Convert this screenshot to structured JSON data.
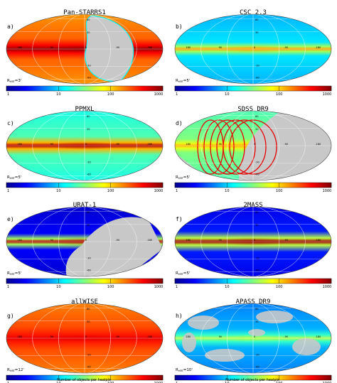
{
  "figure": {
    "colorbar_xlabel": "Number of objects per healpix",
    "colorscale": [
      "#00008f",
      "#0000ff",
      "#0080ff",
      "#00ffff",
      "#80ff80",
      "#ffff00",
      "#ff8000",
      "#ff0000",
      "#800000"
    ],
    "masked_color": "#c8c8c8"
  },
  "chart_data": [
    {
      "type": "heatmap",
      "projection": "mollweide",
      "title": "Pan-STARRS1",
      "panel_label": "a)",
      "resolution_label": "R",
      "resolution_sub": "HRT",
      "resolution_value": "=3'",
      "colorbar_ticks": [
        "1",
        "10",
        "100",
        "1000"
      ],
      "grid_labels": [
        "180",
        "90",
        "0",
        "-90",
        "-180",
        "60",
        "30",
        "-30",
        "-60"
      ],
      "masked_region": "southern sky (Dec < -30 deg)",
      "level": {
        "base": 0.78,
        "galactic_plane": 0.98,
        "plane_width_deg": 9
      }
    },
    {
      "type": "heatmap",
      "projection": "mollweide",
      "title": "CSC 2.3",
      "panel_label": "b)",
      "resolution_label": "R",
      "resolution_sub": "HRT",
      "resolution_value": "=5'",
      "colorbar_ticks": [
        "1",
        "10",
        "100",
        "1000"
      ],
      "grid_labels": [
        "180",
        "90",
        "0",
        "-90",
        "-180",
        "60",
        "30",
        "-30",
        "-60"
      ],
      "masked_region": "none",
      "level": {
        "base": 0.35,
        "galactic_plane": 0.72,
        "plane_width_deg": 6
      }
    },
    {
      "type": "heatmap",
      "projection": "mollweide",
      "title": "PPMXL",
      "panel_label": "c)",
      "resolution_label": "R",
      "resolution_sub": "HRT",
      "resolution_value": "=5'",
      "colorbar_ticks": [
        "1",
        "10",
        "100",
        "1000"
      ],
      "grid_labels": [
        "180",
        "90",
        "0",
        "-90",
        "-180",
        "60",
        "30",
        "-30",
        "-60"
      ],
      "masked_region": "none",
      "level": {
        "base": 0.45,
        "galactic_plane": 0.95,
        "plane_width_deg": 8
      }
    },
    {
      "type": "heatmap",
      "projection": "mollweide",
      "title": "SDSS DR9",
      "panel_label": "d)",
      "resolution_label": "R",
      "resolution_sub": "HRT",
      "resolution_value": "=5'",
      "colorbar_ticks": [
        "1",
        "10",
        "100",
        "1000"
      ],
      "grid_labels": [
        "180",
        "90",
        "0",
        "-90",
        "-180",
        "60",
        "30",
        "-30",
        "-60"
      ],
      "masked_region": "most of sky outside SDSS footprint",
      "level": {
        "base": 0.5,
        "galactic_plane": 0.7,
        "plane_width_deg": 6
      }
    },
    {
      "type": "heatmap",
      "projection": "mollweide",
      "title": "URAT-1",
      "panel_label": "e)",
      "resolution_label": "R",
      "resolution_sub": "HRT",
      "resolution_value": "=5'",
      "colorbar_ticks": [
        "1",
        "10",
        "100",
        "1000"
      ],
      "grid_labels": [
        "180",
        "90",
        "0",
        "-90",
        "-180",
        "60",
        "30",
        "-30",
        "-60"
      ],
      "masked_region": "southern sky (Dec < -15 deg)",
      "level": {
        "base": 0.12,
        "galactic_plane": 0.95,
        "plane_width_deg": 7
      }
    },
    {
      "type": "heatmap",
      "projection": "mollweide",
      "title": "2MASS",
      "panel_label": "f)",
      "resolution_label": "R",
      "resolution_sub": "HRT",
      "resolution_value": "=5'",
      "colorbar_ticks": [
        "1",
        "10",
        "100",
        "1000"
      ],
      "grid_labels": [
        "180",
        "90",
        "0",
        "-90",
        "-180",
        "60",
        "30",
        "-30",
        "-60"
      ],
      "masked_region": "none",
      "level": {
        "base": 0.15,
        "galactic_plane": 0.97,
        "plane_width_deg": 9
      }
    },
    {
      "type": "heatmap",
      "projection": "mollweide",
      "title": "allWISE",
      "panel_label": "g)",
      "resolution_label": "R",
      "resolution_sub": "HRT",
      "resolution_value": "=12'",
      "colorbar_ticks": [
        "1",
        "10",
        "100",
        "1000"
      ],
      "grid_labels": [
        "180",
        "90",
        "0",
        "-90",
        "-180",
        "60",
        "30",
        "-30",
        "-60"
      ],
      "masked_region": "none",
      "level": {
        "base": 0.8,
        "galactic_plane": 0.9,
        "plane_width_deg": 10
      }
    },
    {
      "type": "heatmap",
      "projection": "mollweide",
      "title": "APASS DR9",
      "panel_label": "h)",
      "resolution_label": "R",
      "resolution_sub": "HRT",
      "resolution_value": "=10'",
      "colorbar_ticks": [
        "1",
        "10",
        "100",
        "1000"
      ],
      "grid_labels": [
        "180",
        "90",
        "0",
        "-90",
        "-180",
        "60",
        "30",
        "-30",
        "-60"
      ],
      "masked_region": "scattered patches",
      "level": {
        "base": 0.3,
        "galactic_plane": 0.55,
        "plane_width_deg": 8
      }
    }
  ]
}
